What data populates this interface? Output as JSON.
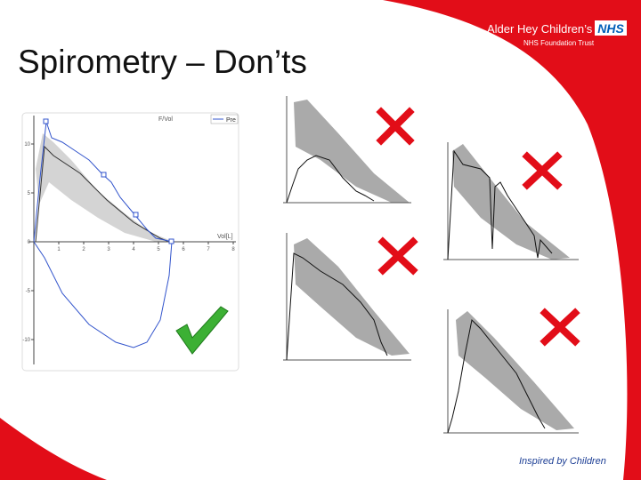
{
  "header": {
    "title": "Spirometry – Don’ts",
    "logo_name": "Alder Hey Children’s",
    "logo_badge": "NHS",
    "logo_subtitle": "NHS Foundation Trust"
  },
  "flow_volume_chart": {
    "title": "F/Vol",
    "legend": "Pre",
    "x_label": "Vol[L]",
    "x_ticks": [
      1,
      2,
      3,
      4,
      5,
      6,
      7,
      8
    ],
    "y_ticks": [
      10,
      5,
      0,
      -5,
      -10
    ]
  },
  "footer": {
    "tagline": "Inspired by Children"
  }
}
